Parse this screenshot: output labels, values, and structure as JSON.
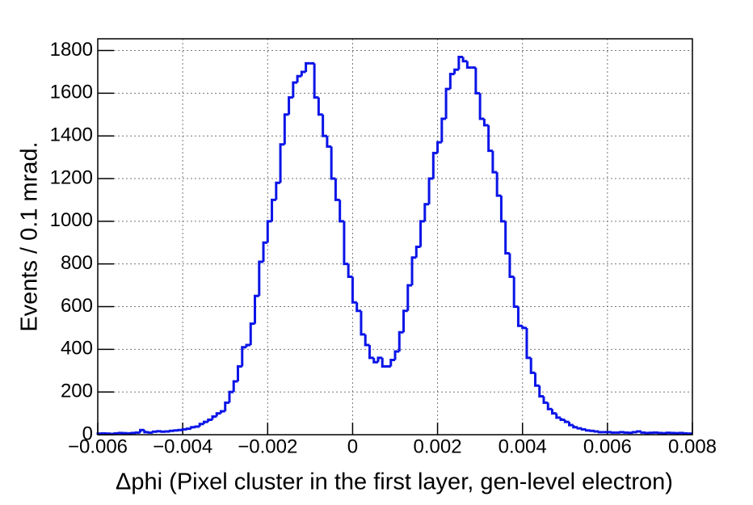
{
  "chart_data": {
    "type": "histogram",
    "xlabel": "Δphi (Pixel cluster in the first layer, gen-level electron)",
    "ylabel": "Events / 0.1 mrad.",
    "color": "#0a14e6",
    "grid": true,
    "xlim": [
      -0.006,
      0.008
    ],
    "ylim": [
      0,
      1855
    ],
    "xticks": [
      {
        "value": -0.006,
        "label": "−0.006"
      },
      {
        "value": -0.004,
        "label": "−0.004"
      },
      {
        "value": -0.002,
        "label": "−0.002"
      },
      0,
      0.002,
      0.004,
      0.006,
      0.008
    ],
    "yticks": [
      0,
      200,
      400,
      600,
      800,
      1000,
      1200,
      1400,
      1600,
      1800
    ],
    "bins": [
      -0.006,
      -0.0059,
      -0.0058,
      -0.0057,
      -0.0056,
      -0.0055,
      -0.0054,
      -0.0053,
      -0.0052,
      -0.0051,
      -0.005,
      -0.0049,
      -0.0048,
      -0.0047,
      -0.0046,
      -0.0045,
      -0.0044,
      -0.0043,
      -0.0042,
      -0.0041,
      -0.004,
      -0.0039,
      -0.0038,
      -0.0037,
      -0.0036,
      -0.0035,
      -0.0034,
      -0.0033,
      -0.0032,
      -0.0031,
      -0.003,
      -0.0029,
      -0.0028,
      -0.0027,
      -0.0026,
      -0.0025,
      -0.0024,
      -0.0023,
      -0.0022,
      -0.0021,
      -0.002,
      -0.0019,
      -0.0018,
      -0.0017,
      -0.0016,
      -0.0015,
      -0.0014,
      -0.0013,
      -0.0012,
      -0.0011,
      -0.001,
      -0.0009,
      -0.0008,
      -0.0007,
      -0.0006,
      -0.0005,
      -0.0004,
      -0.0003,
      -0.0002,
      -0.0001,
      0,
      0.0001,
      0.0002,
      0.0003,
      0.0004,
      0.0005,
      0.0006,
      0.0007,
      0.0008,
      0.0009,
      0.001,
      0.0011,
      0.0012,
      0.0013,
      0.0014,
      0.0015,
      0.0016,
      0.0017,
      0.0018,
      0.0019,
      0.002,
      0.0021,
      0.0022,
      0.0023,
      0.0024,
      0.0025,
      0.0026,
      0.0027,
      0.0028,
      0.0029,
      0.003,
      0.0031,
      0.0032,
      0.0033,
      0.0034,
      0.0035,
      0.0036,
      0.0037,
      0.0038,
      0.0039,
      0.004,
      0.0041,
      0.0042,
      0.0043,
      0.0044,
      0.0045,
      0.0046,
      0.0047,
      0.0048,
      0.0049,
      0.005,
      0.0051,
      0.0052,
      0.0053,
      0.0054,
      0.0055,
      0.0056,
      0.0057,
      0.0058,
      0.0059,
      0.006,
      0.0061,
      0.0062,
      0.0063,
      0.0064,
      0.0065,
      0.0066,
      0.0067,
      0.0068,
      0.0069,
      0.007,
      0.0071,
      0.0072,
      0.0073,
      0.0074,
      0.0075,
      0.0076,
      0.0077,
      0.0078,
      0.0079,
      0.008
    ],
    "counts": [
      5,
      6,
      5,
      4,
      6,
      8,
      7,
      6,
      8,
      10,
      22,
      12,
      10,
      14,
      16,
      14,
      15,
      18,
      20,
      22,
      25,
      28,
      35,
      38,
      50,
      60,
      70,
      85,
      100,
      110,
      150,
      200,
      250,
      320,
      410,
      420,
      520,
      650,
      810,
      900,
      1000,
      1100,
      1180,
      1360,
      1500,
      1580,
      1650,
      1680,
      1700,
      1740,
      1740,
      1580,
      1500,
      1400,
      1350,
      1200,
      1100,
      1000,
      800,
      740,
      620,
      580,
      470,
      420,
      360,
      340,
      360,
      320,
      320,
      350,
      390,
      480,
      580,
      700,
      830,
      880,
      1000,
      1080,
      1200,
      1320,
      1370,
      1480,
      1620,
      1690,
      1710,
      1770,
      1750,
      1720,
      1720,
      1600,
      1480,
      1450,
      1330,
      1230,
      1120,
      1000,
      850,
      740,
      600,
      510,
      500,
      360,
      290,
      230,
      180,
      150,
      120,
      100,
      80,
      70,
      60,
      45,
      35,
      30,
      25,
      20,
      18,
      15,
      12,
      12,
      12,
      10,
      10,
      12,
      10,
      9,
      12,
      15,
      10,
      8,
      9,
      10,
      8,
      7,
      9,
      8,
      7,
      8,
      6,
      5
    ]
  }
}
